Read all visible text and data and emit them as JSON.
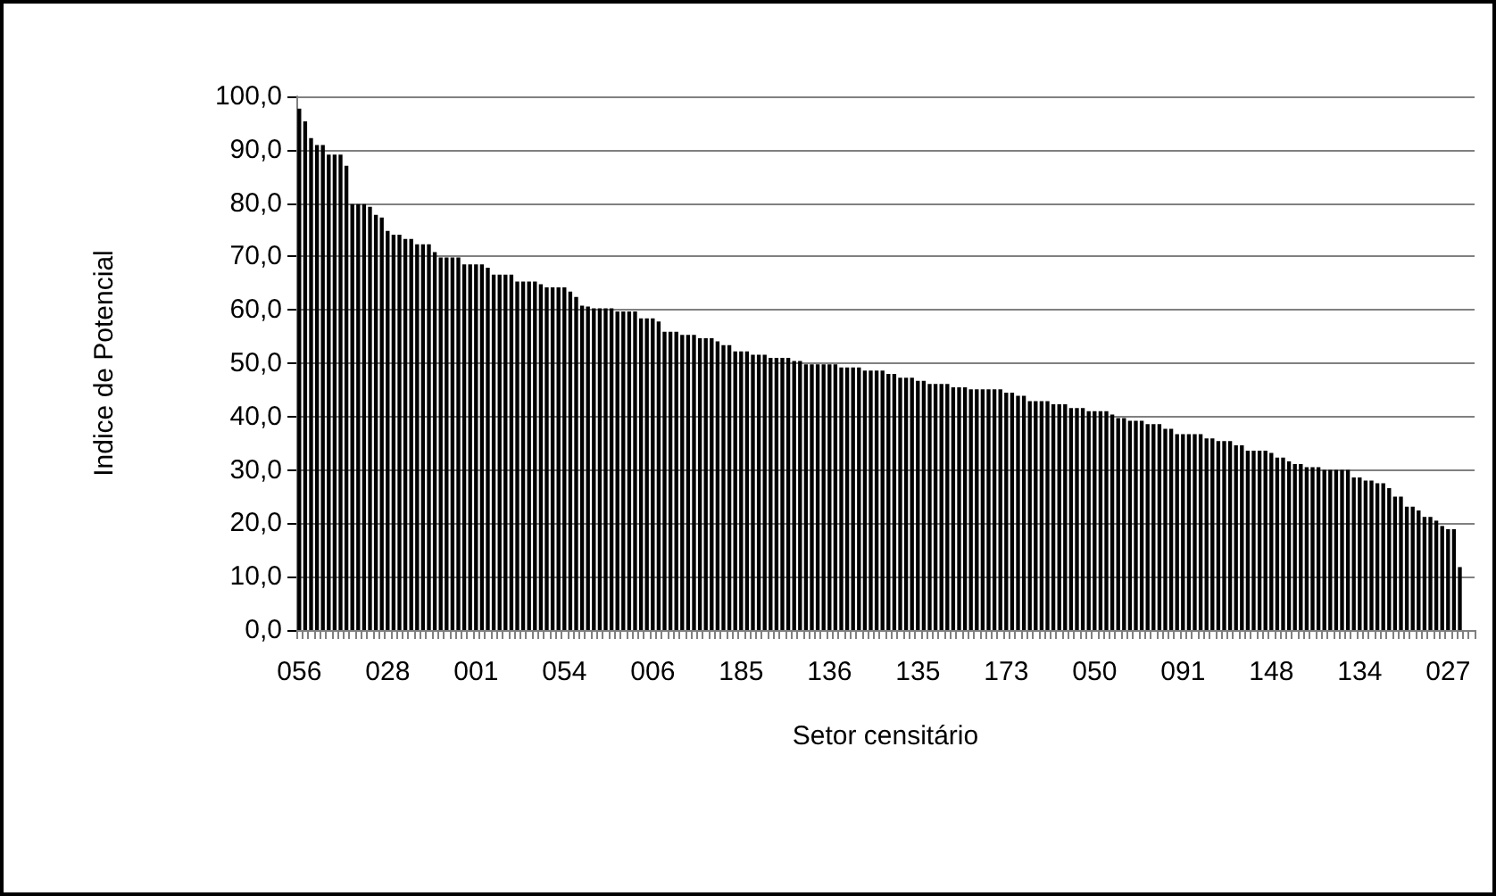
{
  "chart_data": {
    "type": "bar",
    "xlabel": "Setor censitário",
    "ylabel": "Indice de Potencial",
    "color": "#000000",
    "categories": [
      "056",
      null,
      null,
      null,
      null,
      null,
      null,
      null,
      null,
      null,
      null,
      null,
      null,
      null,
      null,
      "028",
      null,
      null,
      null,
      null,
      null,
      null,
      null,
      null,
      null,
      null,
      null,
      null,
      null,
      null,
      "001",
      null,
      null,
      null,
      null,
      null,
      null,
      null,
      null,
      null,
      null,
      null,
      null,
      null,
      null,
      "054",
      null,
      null,
      null,
      null,
      null,
      null,
      null,
      null,
      null,
      null,
      null,
      null,
      null,
      null,
      "006",
      null,
      null,
      null,
      null,
      null,
      null,
      null,
      null,
      null,
      null,
      null,
      null,
      null,
      null,
      "185",
      null,
      null,
      null,
      null,
      null,
      null,
      null,
      null,
      null,
      null,
      null,
      null,
      null,
      null,
      "136",
      null,
      null,
      null,
      null,
      null,
      null,
      null,
      null,
      null,
      null,
      null,
      null,
      null,
      null,
      "135",
      null,
      null,
      null,
      null,
      null,
      null,
      null,
      null,
      null,
      null,
      null,
      null,
      null,
      null,
      "173",
      null,
      null,
      null,
      null,
      null,
      null,
      null,
      null,
      null,
      null,
      null,
      null,
      null,
      null,
      "050",
      null,
      null,
      null,
      null,
      null,
      null,
      null,
      null,
      null,
      null,
      null,
      null,
      null,
      null,
      "091",
      null,
      null,
      null,
      null,
      null,
      null,
      null,
      null,
      null,
      null,
      null,
      null,
      null,
      null,
      "148",
      null,
      null,
      null,
      null,
      null,
      null,
      null,
      null,
      null,
      null,
      null,
      null,
      null,
      null,
      "134",
      null,
      null,
      null,
      null,
      null,
      null,
      null,
      null,
      null,
      null,
      null,
      null,
      null,
      null,
      "027",
      null,
      null,
      null,
      null
    ],
    "values": [
      97.7,
      95.3,
      92.2,
      90.9,
      90.9,
      89.1,
      89.1,
      89.1,
      87.0,
      79.8,
      79.8,
      79.8,
      79.3,
      77.8,
      77.3,
      74.8,
      74.1,
      74.1,
      73.3,
      73.3,
      72.3,
      72.3,
      72.3,
      70.8,
      69.8,
      69.8,
      69.8,
      69.8,
      68.5,
      68.5,
      68.5,
      68.5,
      67.9,
      66.6,
      66.6,
      66.6,
      66.6,
      65.3,
      65.3,
      65.3,
      65.3,
      64.8,
      64.2,
      64.2,
      64.2,
      64.2,
      63.4,
      62.4,
      60.8,
      60.6,
      60.3,
      60.3,
      60.3,
      60.3,
      59.7,
      59.7,
      59.7,
      59.7,
      58.4,
      58.4,
      58.4,
      57.8,
      55.9,
      55.9,
      55.9,
      55.3,
      55.3,
      55.3,
      54.7,
      54.7,
      54.7,
      54.1,
      53.4,
      53.4,
      52.2,
      52.2,
      52.2,
      51.6,
      51.6,
      51.6,
      51.0,
      51.0,
      51.0,
      51.0,
      50.4,
      50.4,
      49.8,
      49.8,
      49.8,
      49.8,
      49.8,
      49.8,
      49.2,
      49.2,
      49.2,
      49.2,
      48.6,
      48.6,
      48.6,
      48.6,
      48.0,
      48.0,
      47.3,
      47.3,
      47.3,
      46.7,
      46.7,
      46.1,
      46.1,
      46.1,
      46.1,
      45.5,
      45.5,
      45.5,
      45.1,
      45.1,
      45.1,
      45.1,
      45.1,
      45.1,
      44.5,
      44.5,
      43.9,
      43.9,
      42.9,
      42.9,
      42.9,
      42.9,
      42.3,
      42.3,
      42.3,
      41.6,
      41.6,
      41.6,
      41.0,
      41.0,
      41.0,
      41.0,
      40.4,
      39.7,
      39.7,
      39.2,
      39.2,
      39.2,
      38.6,
      38.6,
      38.6,
      37.7,
      37.7,
      36.7,
      36.7,
      36.7,
      36.7,
      36.7,
      35.9,
      35.9,
      35.4,
      35.4,
      35.4,
      34.6,
      34.6,
      33.6,
      33.6,
      33.6,
      33.6,
      33.2,
      32.3,
      32.3,
      31.6,
      31.1,
      31.1,
      30.5,
      30.5,
      30.5,
      30.0,
      30.0,
      30.0,
      30.0,
      30.0,
      28.6,
      28.6,
      28.0,
      28.0,
      27.5,
      27.5,
      26.6,
      25.0,
      25.0,
      23.1,
      23.1,
      22.4,
      21.2,
      21.2,
      20.5,
      19.5,
      18.9,
      18.9,
      11.8,
      null,
      null
    ],
    "ylim": [
      0,
      100
    ],
    "yticks": [
      {
        "value": 0,
        "label": "0,0"
      },
      {
        "value": 10,
        "label": "10,0"
      },
      {
        "value": 20,
        "label": "20,0"
      },
      {
        "value": 30,
        "label": "30,0"
      },
      {
        "value": 40,
        "label": "40,0"
      },
      {
        "value": 50,
        "label": "50,0"
      },
      {
        "value": 60,
        "label": "60,0"
      },
      {
        "value": 70,
        "label": "70,0"
      },
      {
        "value": 80,
        "label": "80,0"
      },
      {
        "value": 90,
        "label": "90,0"
      },
      {
        "value": 100,
        "label": "100,0"
      }
    ],
    "grid": "y"
  }
}
